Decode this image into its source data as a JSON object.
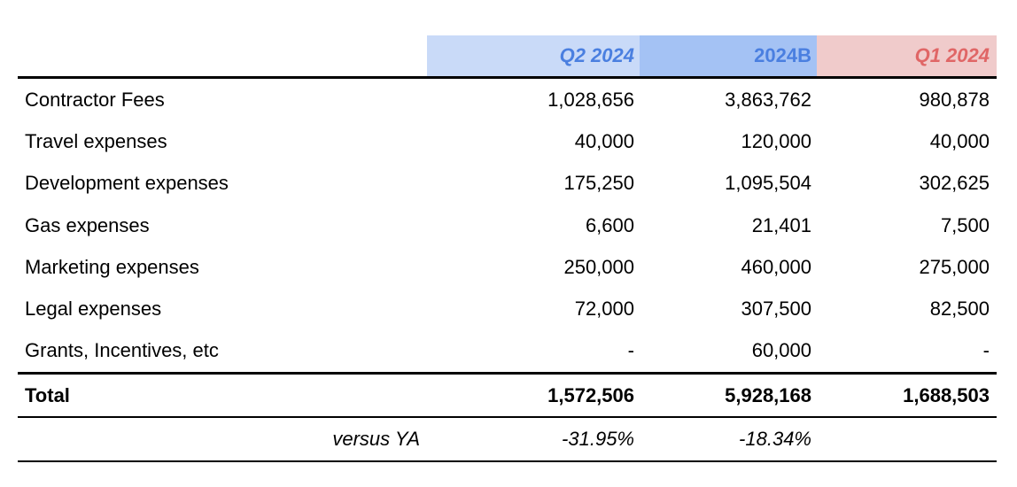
{
  "header": {
    "q2": "Q2 2024",
    "budget": "2024B",
    "q1": "Q1 2024"
  },
  "rows": [
    {
      "label": "Contractor Fees",
      "q2": "1,028,656",
      "budget": "3,863,762",
      "q1": "980,878"
    },
    {
      "label": "Travel expenses",
      "q2": "40,000",
      "budget": "120,000",
      "q1": "40,000"
    },
    {
      "label": "Development expenses",
      "q2": "175,250",
      "budget": "1,095,504",
      "q1": "302,625"
    },
    {
      "label": "Gas expenses",
      "q2": "6,600",
      "budget": "21,401",
      "q1": "7,500"
    },
    {
      "label": "Marketing expenses",
      "q2": "250,000",
      "budget": "460,000",
      "q1": "275,000"
    },
    {
      "label": "Legal expenses",
      "q2": "72,000",
      "budget": "307,500",
      "q1": "82,500"
    },
    {
      "label": "Grants, Incentives, etc",
      "q2": "-",
      "budget": "60,000",
      "q1": "-"
    }
  ],
  "total": {
    "label": "Total",
    "q2": "1,572,506",
    "budget": "5,928,168",
    "q1": "1,688,503"
  },
  "versus": {
    "label": "versus YA",
    "q2": "-31.95%",
    "budget": "-18.34%"
  }
}
